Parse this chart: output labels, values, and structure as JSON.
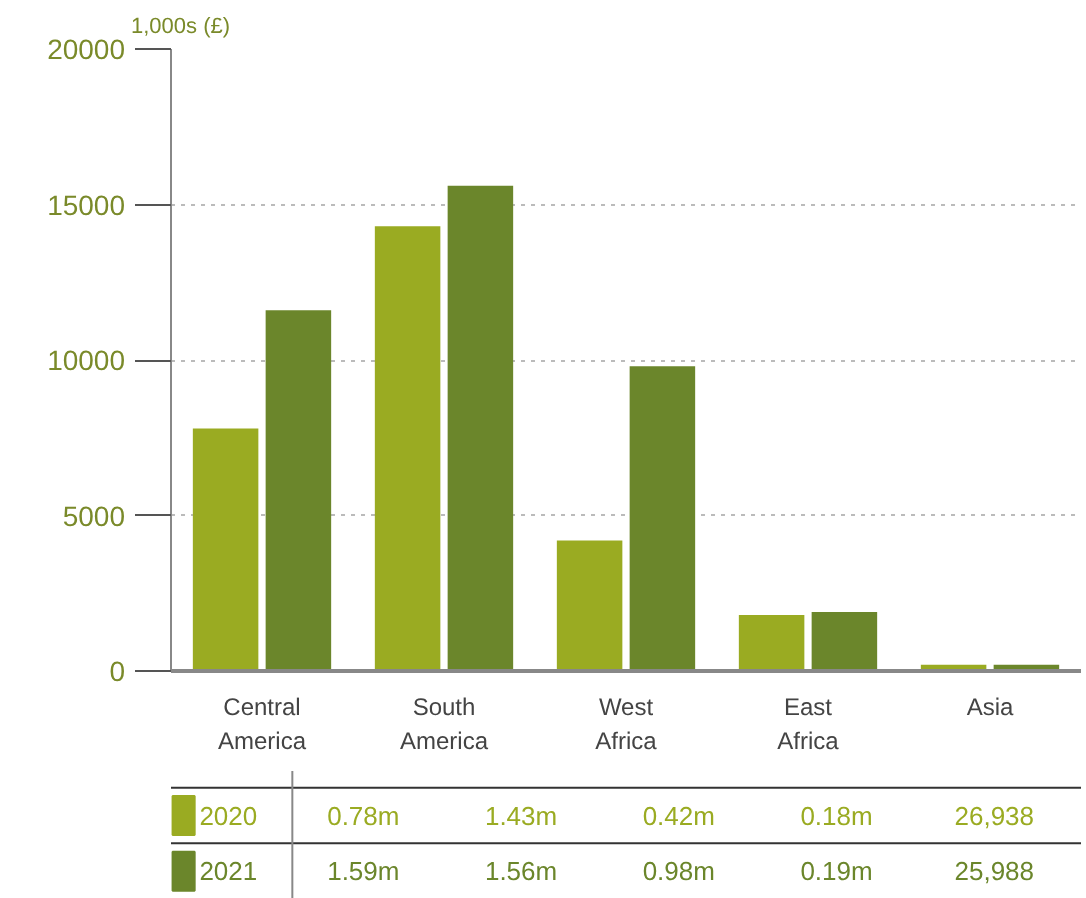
{
  "chart_data": {
    "type": "bar",
    "ylabel": "1,000s (£)",
    "categories": [
      "Central America",
      "South America",
      "West Africa",
      "East Africa",
      "Asia"
    ],
    "series": [
      {
        "name": "2020",
        "color": "#9aab22",
        "values": [
          7800,
          14300,
          4200,
          1800,
          200
        ]
      },
      {
        "name": "2021",
        "color": "#6b862b",
        "values": [
          11600,
          15600,
          9800,
          1900,
          200
        ]
      }
    ],
    "annotations": [
      "0.78m",
      "1.43m",
      "0.42m",
      "0.18m",
      "26,938",
      "1.59m",
      "1.56m",
      "0.98m",
      "0.19m",
      "25,988"
    ],
    "ylim": [
      0,
      20000
    ],
    "yticks": [
      0,
      5000,
      10000,
      15000,
      20000
    ],
    "grid": "y",
    "legend": "bottom"
  }
}
